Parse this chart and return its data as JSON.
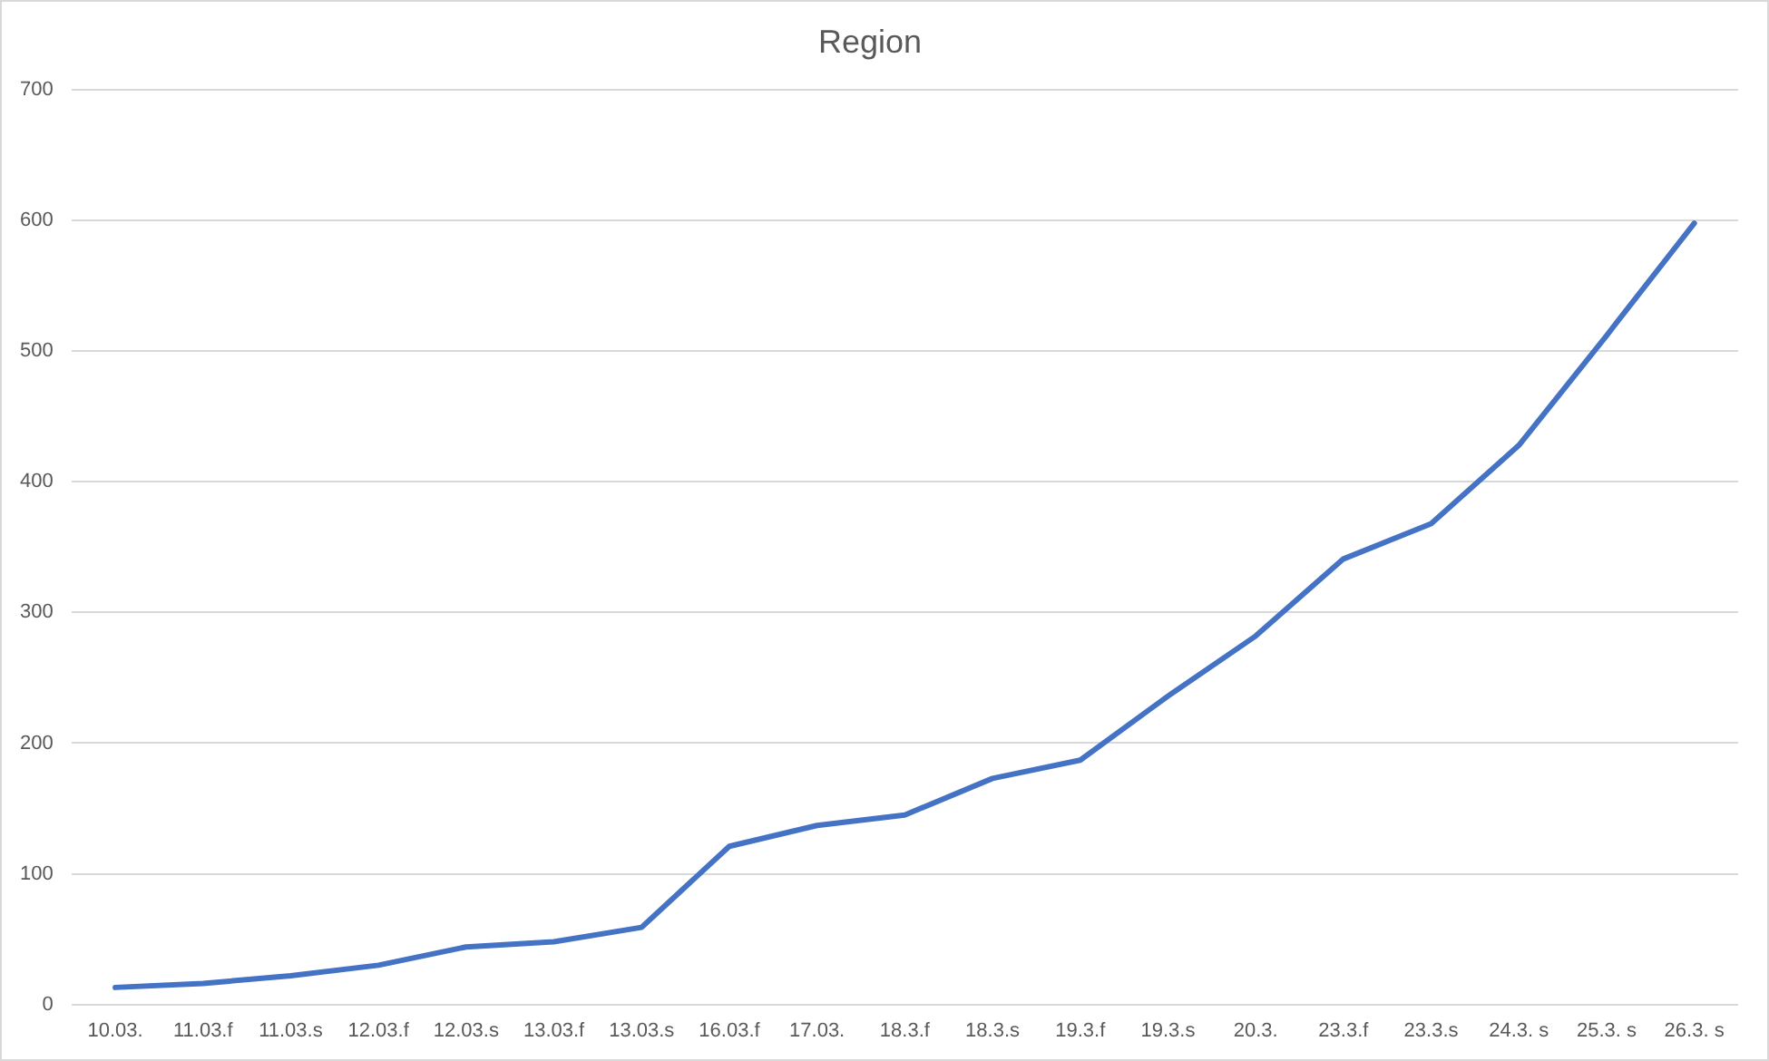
{
  "chart_data": {
    "type": "line",
    "title": "Region",
    "categories": [
      "10.03.",
      "11.03.f",
      "11.03.s",
      "12.03.f",
      "12.03.s",
      "13.03.f",
      "13.03.s",
      "16.03.f",
      "17.03.",
      "18.3.f",
      "18.3.s",
      "19.3.f",
      "19.3.s",
      "20.3.",
      "23.3.f",
      "23.3.s",
      "24.3. s",
      "25.3. s",
      "26.3. s"
    ],
    "values": [
      13,
      16,
      22,
      30,
      44,
      48,
      59,
      121,
      137,
      145,
      173,
      187,
      236,
      282,
      341,
      368,
      428,
      512,
      598
    ],
    "color": "#4472c4",
    "ylim": [
      0,
      700
    ],
    "yticks": [
      0,
      100,
      200,
      300,
      400,
      500,
      600,
      700
    ],
    "grid": "y",
    "marker": "none"
  }
}
